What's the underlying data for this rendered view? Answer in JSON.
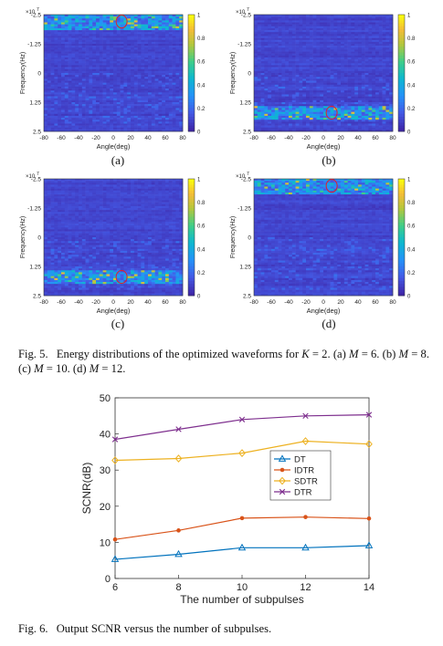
{
  "heatmap_common": {
    "xlabel": "Angle(deg)",
    "ylabel": "Frequency(Hz)",
    "x_ticks": [
      "-80",
      "-60",
      "-40",
      "-20",
      "0",
      "20",
      "40",
      "60",
      "80"
    ],
    "y_ticks": [
      "-2.5",
      "-1.25",
      "0",
      "1.25",
      "2.5"
    ],
    "y_exponent": "×10",
    "y_exponent_power": "7",
    "colorbar_ticks": [
      "1",
      "0.8",
      "0.6",
      "0.4",
      "0.2",
      "0"
    ],
    "colors": {
      "low": "#3e26a8",
      "high": "#f9fb0e"
    }
  },
  "panels": [
    {
      "label": "(a)",
      "energy_band": "top"
    },
    {
      "label": "(b)",
      "energy_band": "bottom"
    },
    {
      "label": "(c)",
      "energy_band": "bottom"
    },
    {
      "label": "(d)",
      "energy_band": "top"
    }
  ],
  "fig5": {
    "label": "Fig. 5.",
    "text_html": "Energy distributions of the optimized waveforms for <i>K</i> = 2. (a) <i>M</i> = 6. (b) <i>M</i> = 8. (c) <i>M</i> = 10. (d) <i>M</i> = 12."
  },
  "fig6": {
    "label": "Fig. 6.",
    "text": "Output SCNR versus the number of subpulses."
  },
  "chart_data": {
    "type": "line",
    "x": [
      6,
      8,
      10,
      12,
      14
    ],
    "xlabel": "The number of subpulses",
    "ylabel": "SCNR(dB)",
    "xlim": [
      6,
      14
    ],
    "ylim": [
      0,
      50
    ],
    "x_ticks": [
      6,
      8,
      10,
      12,
      14
    ],
    "y_ticks": [
      0,
      10,
      20,
      30,
      40,
      50
    ],
    "grid": false,
    "legend_position": "right-middle",
    "series": [
      {
        "name": "DT",
        "color": "#0072bd",
        "marker": "triangle",
        "values": [
          5.3,
          6.7,
          8.5,
          8.5,
          9.1
        ]
      },
      {
        "name": "IDTR",
        "color": "#d95319",
        "marker": "dot",
        "values": [
          10.8,
          13.3,
          16.7,
          17.0,
          16.6
        ]
      },
      {
        "name": "SDTR",
        "color": "#edb120",
        "marker": "diamond",
        "values": [
          32.7,
          33.2,
          34.7,
          38.0,
          37.2
        ]
      },
      {
        "name": "DTR",
        "color": "#7e2f8e",
        "marker": "x",
        "values": [
          38.5,
          41.3,
          44.0,
          45.0,
          45.3
        ]
      }
    ]
  }
}
